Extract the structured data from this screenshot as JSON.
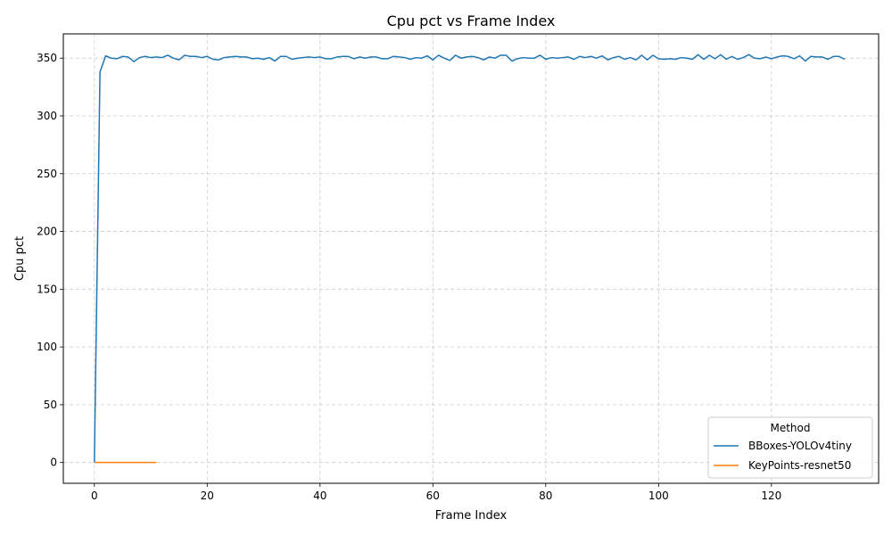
{
  "chart_data": {
    "type": "line",
    "title": "Cpu pct vs Frame Index",
    "xlabel": "Frame Index",
    "ylabel": "Cpu pct",
    "xlim": [
      -5.5,
      139
    ],
    "ylim": [
      -18,
      371
    ],
    "xticks": [
      0,
      20,
      40,
      60,
      80,
      100,
      120
    ],
    "yticks": [
      0,
      50,
      100,
      150,
      200,
      250,
      300,
      350
    ],
    "grid": true,
    "legend": {
      "title": "Method",
      "position": "lower-right"
    },
    "series": [
      {
        "name": "BBoxes-YOLOv4tiny",
        "color": "#1f77b4",
        "x": [
          0,
          1,
          2,
          3,
          4,
          5,
          6,
          7,
          8,
          9,
          10,
          11,
          12,
          13,
          14,
          15,
          16,
          17,
          18,
          19,
          20,
          21,
          22,
          23,
          24,
          25,
          26,
          27,
          28,
          29,
          30,
          31,
          32,
          33,
          34,
          35,
          36,
          37,
          38,
          39,
          40,
          41,
          42,
          43,
          44,
          45,
          46,
          47,
          48,
          49,
          50,
          51,
          52,
          53,
          54,
          55,
          56,
          57,
          58,
          59,
          60,
          61,
          62,
          63,
          64,
          65,
          66,
          67,
          68,
          69,
          70,
          71,
          72,
          73,
          74,
          75,
          76,
          77,
          78,
          79,
          80,
          81,
          82,
          83,
          84,
          85,
          86,
          87,
          88,
          89,
          90,
          91,
          92,
          93,
          94,
          95,
          96,
          97,
          98,
          99,
          100,
          101,
          102,
          103,
          104,
          105,
          106,
          107,
          108,
          109,
          110,
          111,
          112,
          113,
          114,
          115,
          116,
          117,
          118,
          119,
          120,
          121,
          122,
          123,
          124,
          125,
          126,
          127,
          128,
          129,
          130,
          131,
          132,
          133
        ],
        "y": [
          0,
          338,
          352,
          350,
          349.5,
          351.5,
          351,
          347,
          350.5,
          351.5,
          350.5,
          351,
          350.5,
          352.5,
          350,
          348.5,
          352.5,
          351.5,
          351.5,
          350.5,
          351.5,
          349,
          348.5,
          350.5,
          351,
          351.5,
          351,
          351,
          349.5,
          350,
          349,
          350.5,
          347.5,
          351.5,
          351.5,
          349,
          350,
          350.5,
          351,
          350.5,
          351,
          349.5,
          349.5,
          351,
          351.5,
          351.5,
          349.5,
          351,
          350,
          351,
          351,
          349.5,
          349.5,
          351.5,
          351,
          350.5,
          349,
          350.5,
          350,
          352,
          348.5,
          352.5,
          350,
          348,
          352.5,
          350,
          351,
          351.5,
          350.5,
          348.5,
          351,
          350,
          352.5,
          352.5,
          347.5,
          349.5,
          350.5,
          350,
          350,
          352.5,
          349,
          350.5,
          350,
          350.5,
          351,
          349,
          351.5,
          350.5,
          351.5,
          350,
          352,
          348.5,
          350.5,
          351.5,
          349,
          350.5,
          348.5,
          352.5,
          348.5,
          352.5,
          349.5,
          349,
          349.5,
          349,
          350.5,
          350,
          349,
          353,
          349,
          352.5,
          349.5,
          353,
          349,
          351.5,
          349,
          350.5,
          353,
          350,
          349.5,
          351,
          349.5,
          351,
          352,
          351.5,
          349.5,
          352,
          347.5,
          351.5,
          351,
          351,
          349,
          351.5,
          351.5,
          349
        ]
      },
      {
        "name": "KeyPoints-resnet50",
        "color": "#ff7f0e",
        "x": [
          0,
          1,
          2,
          3,
          4,
          5,
          6,
          7,
          8,
          9,
          10,
          11
        ],
        "y": [
          0,
          0,
          0,
          0,
          0,
          0,
          0,
          0,
          0,
          0,
          0,
          0
        ]
      }
    ]
  }
}
